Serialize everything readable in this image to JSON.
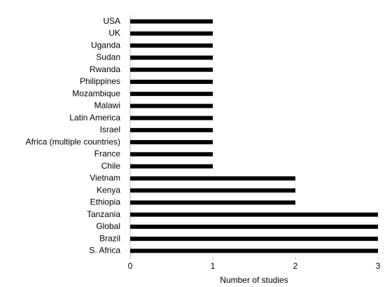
{
  "chart_data": {
    "type": "bar",
    "orientation": "horizontal",
    "categories": [
      "USA",
      "UK",
      "Uganda",
      "Sudan",
      "Rwanda",
      "Philippines",
      "Mozambique",
      "Malawi",
      "Latin America",
      "Israel",
      "Africa (multiple countries)",
      "France",
      "Chile",
      "Vietnam",
      "Kenya",
      "Ethiopia",
      "Tanzania",
      "Global",
      "Brazil",
      "S. Africa"
    ],
    "values": [
      1,
      1,
      1,
      1,
      1,
      1,
      1,
      1,
      1,
      1,
      1,
      1,
      1,
      2,
      2,
      2,
      3,
      3,
      3,
      3
    ],
    "color": "#000000",
    "xlabel": "Number of studies",
    "xlim": [
      0,
      3
    ],
    "xticks": [
      0,
      1,
      2,
      3
    ],
    "grid": false
  }
}
